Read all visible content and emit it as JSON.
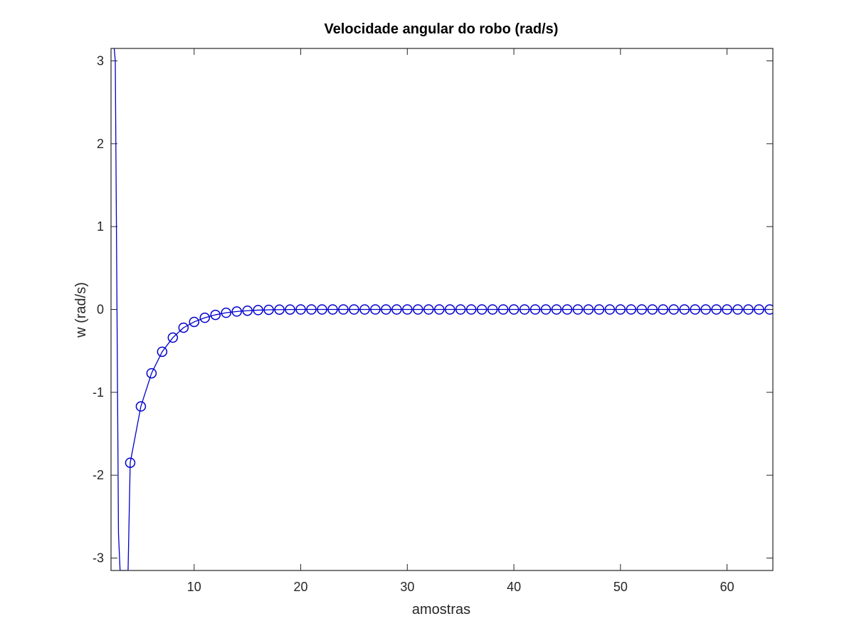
{
  "chart_data": {
    "type": "line",
    "title": "Velocidade angular do robo (rad/s)",
    "xlabel": "amostras",
    "ylabel": "w (rad/s)",
    "xlim": [
      2.2,
      64.3
    ],
    "ylim": [
      -3.15,
      3.15
    ],
    "x_ticks": [
      10,
      20,
      30,
      40,
      50,
      60
    ],
    "x_tick_labels": [
      "10",
      "20",
      "30",
      "40",
      "50",
      "60"
    ],
    "y_ticks": [
      -3,
      -2,
      -1,
      0,
      1,
      2,
      3
    ],
    "y_tick_labels": [
      "-3",
      "-2",
      "-1",
      "0",
      "1",
      "2",
      "3"
    ],
    "grid": false,
    "series_color": "#0000cc",
    "marker": "circle",
    "series": [
      {
        "x": [
          2.5,
          2.6,
          2.75,
          2.9,
          3.05,
          3.25,
          3.4,
          3.6,
          3.8,
          4,
          5,
          6,
          7,
          8,
          9,
          10,
          11,
          12,
          13,
          14,
          15,
          16,
          17,
          18,
          19,
          20,
          21,
          22,
          23,
          24,
          25,
          26,
          27,
          28,
          29,
          30,
          31,
          32,
          33,
          34,
          35,
          36,
          37,
          38,
          39,
          40,
          41,
          42,
          43,
          44,
          45,
          46,
          47,
          48,
          49,
          50,
          51,
          52,
          53,
          54,
          55,
          56,
          57,
          58,
          59,
          60,
          61,
          62,
          63,
          64
        ],
        "y": [
          3.15,
          3.0,
          0.2,
          -2.7,
          -3.15,
          -3.15,
          -3.15,
          -3.15,
          -3.15,
          -1.85,
          -1.17,
          -0.77,
          -0.51,
          -0.34,
          -0.22,
          -0.15,
          -0.1,
          -0.065,
          -0.04,
          -0.025,
          -0.015,
          -0.008,
          -0.004,
          -0.002,
          -0.001,
          0,
          0,
          0,
          0,
          0,
          0,
          0,
          0,
          0,
          0,
          0,
          0,
          0,
          0,
          0,
          0,
          0,
          0,
          0,
          0,
          0,
          0,
          0,
          0,
          0,
          0,
          0,
          0,
          0,
          0,
          0,
          0,
          0,
          0,
          0,
          0,
          0,
          0,
          0,
          0,
          0,
          0,
          0,
          0,
          0
        ],
        "marker_from_x": 4
      }
    ]
  }
}
